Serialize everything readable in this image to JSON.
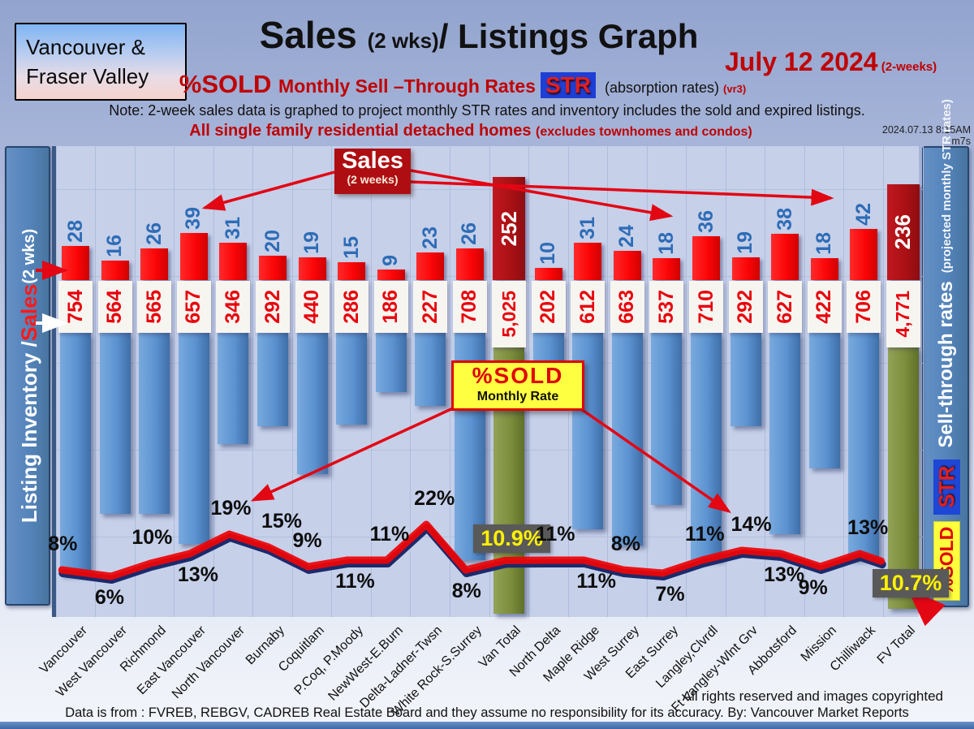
{
  "header": {
    "region_line1": "Vancouver &",
    "region_line2": "Fraser Valley",
    "title_sales": "Sales ",
    "title_wks": "(2 wks)",
    "title_rest": "/ Listings Graph",
    "date": "July 12  2024",
    "date_suffix": " (2-weeks)",
    "pct_sold": "%SOLD ",
    "str_text": "Monthly Sell –Through Rates",
    "str_badge": "STR",
    "absorption": " (absorption rates) ",
    "version": "(vr3)",
    "note": "Note: 2-week sales data is graphed to project monthly STR rates and inventory includes the sold and expired listings.",
    "homes": "All single family residential detached homes ",
    "homes_small": "(excludes townhomes and condos)",
    "timestamp": "2024.07.13 8:15AM m7s"
  },
  "sidebar_left": {
    "part1": "Listing Inventory / ",
    "part2": "Sales",
    "part3": " (2  wks)"
  },
  "sidebar_right": {
    "sold_badge": "%SOLD",
    "str_badge": "STR",
    "title": "Sell-through rates",
    "subtitle": "(projected monthly STR rates)"
  },
  "annotations": {
    "sales_callout_title": "Sales",
    "sales_callout_sub": "(2 weeks)",
    "pctsold_callout_title": "%SOLD",
    "pctsold_callout_sub": "Monthly Rate"
  },
  "footer": {
    "rights": "All rights reserved and  images copyrighted",
    "source": "Data is from : FVREB, REBGV, CADREB Real Estate Board and they assume no responsibility for its accuracy. By: Vancouver Market Reports"
  },
  "colors": {
    "sales_bar": "#fb0507",
    "sales_total_bar": "#a81014",
    "inventory_bar": "#5b92d0",
    "inventory_total_bar": "#7d8e3d",
    "line_red": "#ee0408",
    "line_navy": "#1b2a6b",
    "pct_box_bg": "#595959",
    "pct_box_text": "#fff200",
    "inventory_text": "#e8000b",
    "sales_text": "#2e6cb6",
    "accent_red": "#c00000",
    "str_badge_bg": "#1e3fd6"
  },
  "chart_data": {
    "type": "bar+line",
    "title": "Sales (2 wks)/ Listings Graph",
    "subtitle": "%SOLD Monthly Sell-Through Rates (STR) — July 12 2024 (2-weeks)",
    "categories": [
      "Vancouver",
      "West Vancouver",
      "Richmond",
      "East Vancouver",
      "North Vancouver",
      "Burnaby",
      "Coquitlam",
      "P.Coq, P.Moody",
      "NewWest-E.Burn",
      "Delta-Ladner-Twsn",
      "White Rock-S.Surrey",
      "Van Total",
      "North Delta",
      "Maple Ridge",
      "West Surrey",
      "East Surrey",
      "Langley,Clvrdl",
      "Ft Langley-Wlnt Grv",
      "Abbotsford",
      "Mission",
      "Chilliwack",
      "FV Total"
    ],
    "series": [
      {
        "name": "Sales (2 weeks)",
        "type": "bar",
        "values": [
          28,
          16,
          26,
          39,
          31,
          20,
          19,
          15,
          9,
          23,
          26,
          252,
          10,
          31,
          24,
          18,
          36,
          19,
          38,
          18,
          42,
          236
        ]
      },
      {
        "name": "Listing Inventory",
        "type": "bar",
        "values": [
          754,
          564,
          565,
          657,
          346,
          292,
          440,
          286,
          186,
          227,
          708,
          5025,
          202,
          612,
          663,
          537,
          710,
          292,
          627,
          422,
          706,
          4771
        ]
      },
      {
        "name": "%SOLD Monthly Rate",
        "type": "line",
        "values": [
          8,
          6,
          10,
          13,
          19,
          15,
          9,
          11,
          11,
          22,
          8,
          10.9,
          11,
          11,
          8,
          7,
          11,
          14,
          13,
          9,
          13,
          10.7
        ]
      }
    ],
    "inventory_labels": [
      "754",
      "564",
      "565",
      "657",
      "346",
      "292",
      "440",
      "286",
      "186",
      "227",
      "708",
      "5,025",
      "202",
      "612",
      "663",
      "537",
      "710",
      "292",
      "627",
      "422",
      "706",
      "4,771"
    ],
    "pct_labels": [
      "8%",
      "6%",
      "10%",
      "13%",
      "19%",
      "15%",
      "9%",
      "11%",
      "11%",
      "22%",
      "8%",
      "10.9%",
      "11%",
      "11%",
      "8%",
      "7%",
      "11%",
      "14%",
      "13%",
      "9%",
      "13%",
      "10.7%"
    ],
    "total_indices": [
      11,
      21
    ],
    "pct_label_below": [
      false,
      true,
      false,
      true,
      false,
      false,
      false,
      true,
      false,
      false,
      true,
      false,
      false,
      true,
      false,
      true,
      false,
      false,
      true,
      true,
      false,
      true
    ],
    "pct_label_dx": [
      -14,
      -5,
      -8,
      0,
      -8,
      6,
      -4,
      0,
      -6,
      0,
      -2,
      -6,
      4,
      6,
      0,
      6,
      -6,
      2,
      -6,
      -12,
      0,
      0
    ],
    "legend_position": "side-panels",
    "grid": true,
    "ylabel_left": "Listing Inventory / Sales (2 wks)",
    "ylabel_right": "Sell-through rates (projected monthly STR rates)"
  }
}
